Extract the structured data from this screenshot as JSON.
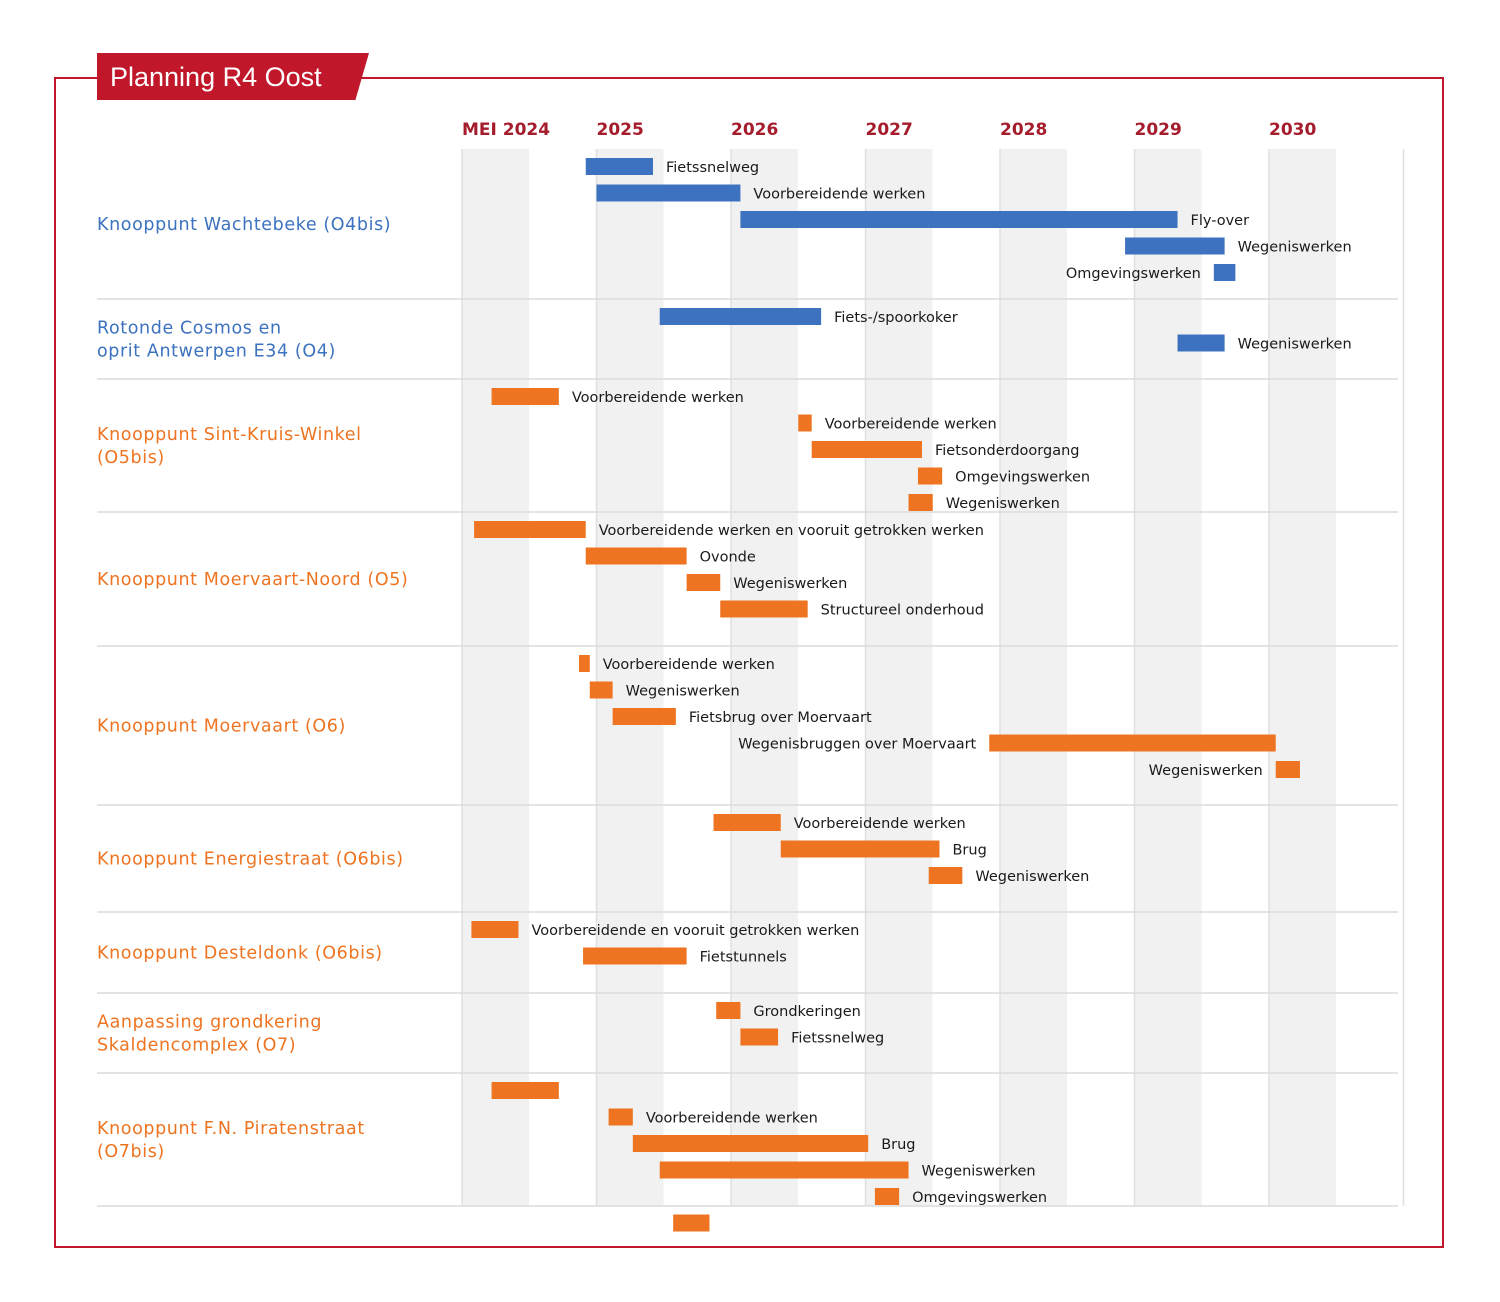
{
  "title": "Planning R4 Oost",
  "colors": {
    "accent": "#c0182a",
    "year": "#a51c2c",
    "blue": "#3c72bf",
    "orange": "#ee7421"
  },
  "chart_data": {
    "type": "gantt",
    "title": "Planning R4 Oost",
    "time_axis": {
      "labels": [
        "MEI 2024",
        "2025",
        "2026",
        "2027",
        "2028",
        "2029",
        "2030"
      ],
      "start": 2024.33,
      "end": 2031.0
    },
    "groups": [
      {
        "name": "Knooppunt Wachtebeke (O4bis)",
        "lines": [
          "Knooppunt Wachtebeke (O4bis)"
        ],
        "color": "blue",
        "tasks": [
          {
            "label": "Fietssnelweg",
            "start": 2025.25,
            "end": 2025.75,
            "side": "right"
          },
          {
            "label": "Voorbereidende werken",
            "start": 2025.33,
            "end": 2026.4,
            "side": "right"
          },
          {
            "label": "Fly-over",
            "start": 2026.4,
            "end": 2029.65,
            "side": "right"
          },
          {
            "label": "Wegeniswerken",
            "start": 2029.26,
            "end": 2030.0,
            "side": "right"
          },
          {
            "label": "Omgevingswerken",
            "start": 2029.92,
            "end": 2030.08,
            "side": "left"
          }
        ]
      },
      {
        "name": "Rotonde Cosmos en oprit Antwerpen E34 (O4)",
        "lines": [
          "Rotonde Cosmos en",
          "oprit Antwerpen E34 (O4)"
        ],
        "color": "blue",
        "tasks": [
          {
            "label": "Fiets-/spoorkoker",
            "start": 2025.8,
            "end": 2027.0,
            "side": "right"
          },
          {
            "label": "Wegeniswerken",
            "start": 2029.65,
            "end": 2030.0,
            "side": "right"
          }
        ]
      },
      {
        "name": "Knooppunt Sint-Kruis-Winkel (O5bis)",
        "lines": [
          "Knooppunt Sint-Kruis-Winkel",
          "(O5bis)"
        ],
        "color": "orange",
        "tasks": [
          {
            "label": "Voorbereidende werken",
            "start": 2024.55,
            "end": 2025.05,
            "side": "right"
          },
          {
            "label": "Voorbereidende werken",
            "start": 2026.83,
            "end": 2026.93,
            "side": "right"
          },
          {
            "label": "Fietsonderdoorgang",
            "start": 2026.93,
            "end": 2027.75,
            "side": "right"
          },
          {
            "label": "Omgevingswerken",
            "start": 2027.72,
            "end": 2027.9,
            "side": "right"
          },
          {
            "label": "Wegeniswerken",
            "start": 2027.65,
            "end": 2027.83,
            "side": "right"
          }
        ]
      },
      {
        "name": "Knooppunt Moervaart-Noord (O5)",
        "lines": [
          "Knooppunt Moervaart-Noord (O5)"
        ],
        "color": "orange",
        "tasks": [
          {
            "label": "Voorbereidende werken en vooruit getrokken werken",
            "start": 2024.42,
            "end": 2025.25,
            "side": "right"
          },
          {
            "label": "Ovonde",
            "start": 2025.25,
            "end": 2026.0,
            "side": "right"
          },
          {
            "label": "Wegeniswerken",
            "start": 2026.0,
            "end": 2026.25,
            "side": "right"
          },
          {
            "label": "Structureel onderhoud",
            "start": 2026.25,
            "end": 2026.9,
            "side": "right"
          }
        ]
      },
      {
        "name": "Knooppunt Moervaart (O6)",
        "lines": [
          "Knooppunt Moervaart (O6)"
        ],
        "color": "orange",
        "tasks": [
          {
            "label": "Voorbereidende werken",
            "start": 2025.2,
            "end": 2025.28,
            "side": "right"
          },
          {
            "label": "Wegeniswerken",
            "start": 2025.28,
            "end": 2025.45,
            "side": "right"
          },
          {
            "label": "Fietsbrug over Moervaart",
            "start": 2025.45,
            "end": 2025.92,
            "side": "right"
          },
          {
            "label": "Wegenisbruggen over Moervaart",
            "start": 2028.25,
            "end": 2030.38,
            "side": "left"
          },
          {
            "label": "Wegeniswerken",
            "start": 2030.38,
            "end": 2030.56,
            "side": "left"
          }
        ]
      },
      {
        "name": "Knooppunt Energiestraat (O6bis)",
        "lines": [
          "Knooppunt Energiestraat (O6bis)"
        ],
        "color": "orange",
        "tasks": [
          {
            "label": "Voorbereidende werken",
            "start": 2026.2,
            "end": 2026.7,
            "side": "right"
          },
          {
            "label": "Brug",
            "start": 2026.7,
            "end": 2027.88,
            "side": "right"
          },
          {
            "label": "Wegeniswerken",
            "start": 2027.8,
            "end": 2028.05,
            "side": "right"
          }
        ]
      },
      {
        "name": "Knooppunt Desteldonk (O6bis)",
        "lines": [
          "Knooppunt Desteldonk (O6bis)"
        ],
        "color": "orange",
        "tasks": [
          {
            "label": "Voorbereidende en vooruit getrokken werken",
            "start": 2024.4,
            "end": 2024.75,
            "side": "right"
          },
          {
            "label": "Fietstunnels",
            "start": 2025.23,
            "end": 2026.0,
            "side": "right"
          }
        ]
      },
      {
        "name": "Aanpassing grondkering Skaldencomplex (O7)",
        "lines": [
          "Aanpassing grondkering",
          "Skaldencomplex (O7)"
        ],
        "color": "orange",
        "tasks": [
          {
            "label": "Grondkeringen",
            "start": 2026.22,
            "end": 2026.4,
            "side": "right"
          },
          {
            "label": "Fietssnelweg",
            "start": 2026.4,
            "end": 2026.68,
            "side": "right"
          }
        ]
      },
      {
        "name": "Knooppunt F.N. Piratenstraat (O7bis)",
        "lines": [
          "Knooppunt F.N. Piratenstraat",
          "(O7bis)"
        ],
        "color": "orange",
        "tasks": [
          {
            "label": "",
            "start": 2024.55,
            "end": 2025.05,
            "side": "right"
          },
          {
            "label": "Voorbereidende werken",
            "start": 2025.42,
            "end": 2025.6,
            "side": "right"
          },
          {
            "label": "Brug",
            "start": 2025.6,
            "end": 2027.35,
            "side": "right"
          },
          {
            "label": "Wegeniswerken",
            "start": 2025.8,
            "end": 2027.65,
            "side": "right"
          },
          {
            "label": "Omgevingswerken",
            "start": 2027.4,
            "end": 2027.58,
            "side": "right"
          },
          {
            "label": "",
            "start": 2025.9,
            "end": 2026.17,
            "side": "right"
          }
        ]
      }
    ]
  }
}
